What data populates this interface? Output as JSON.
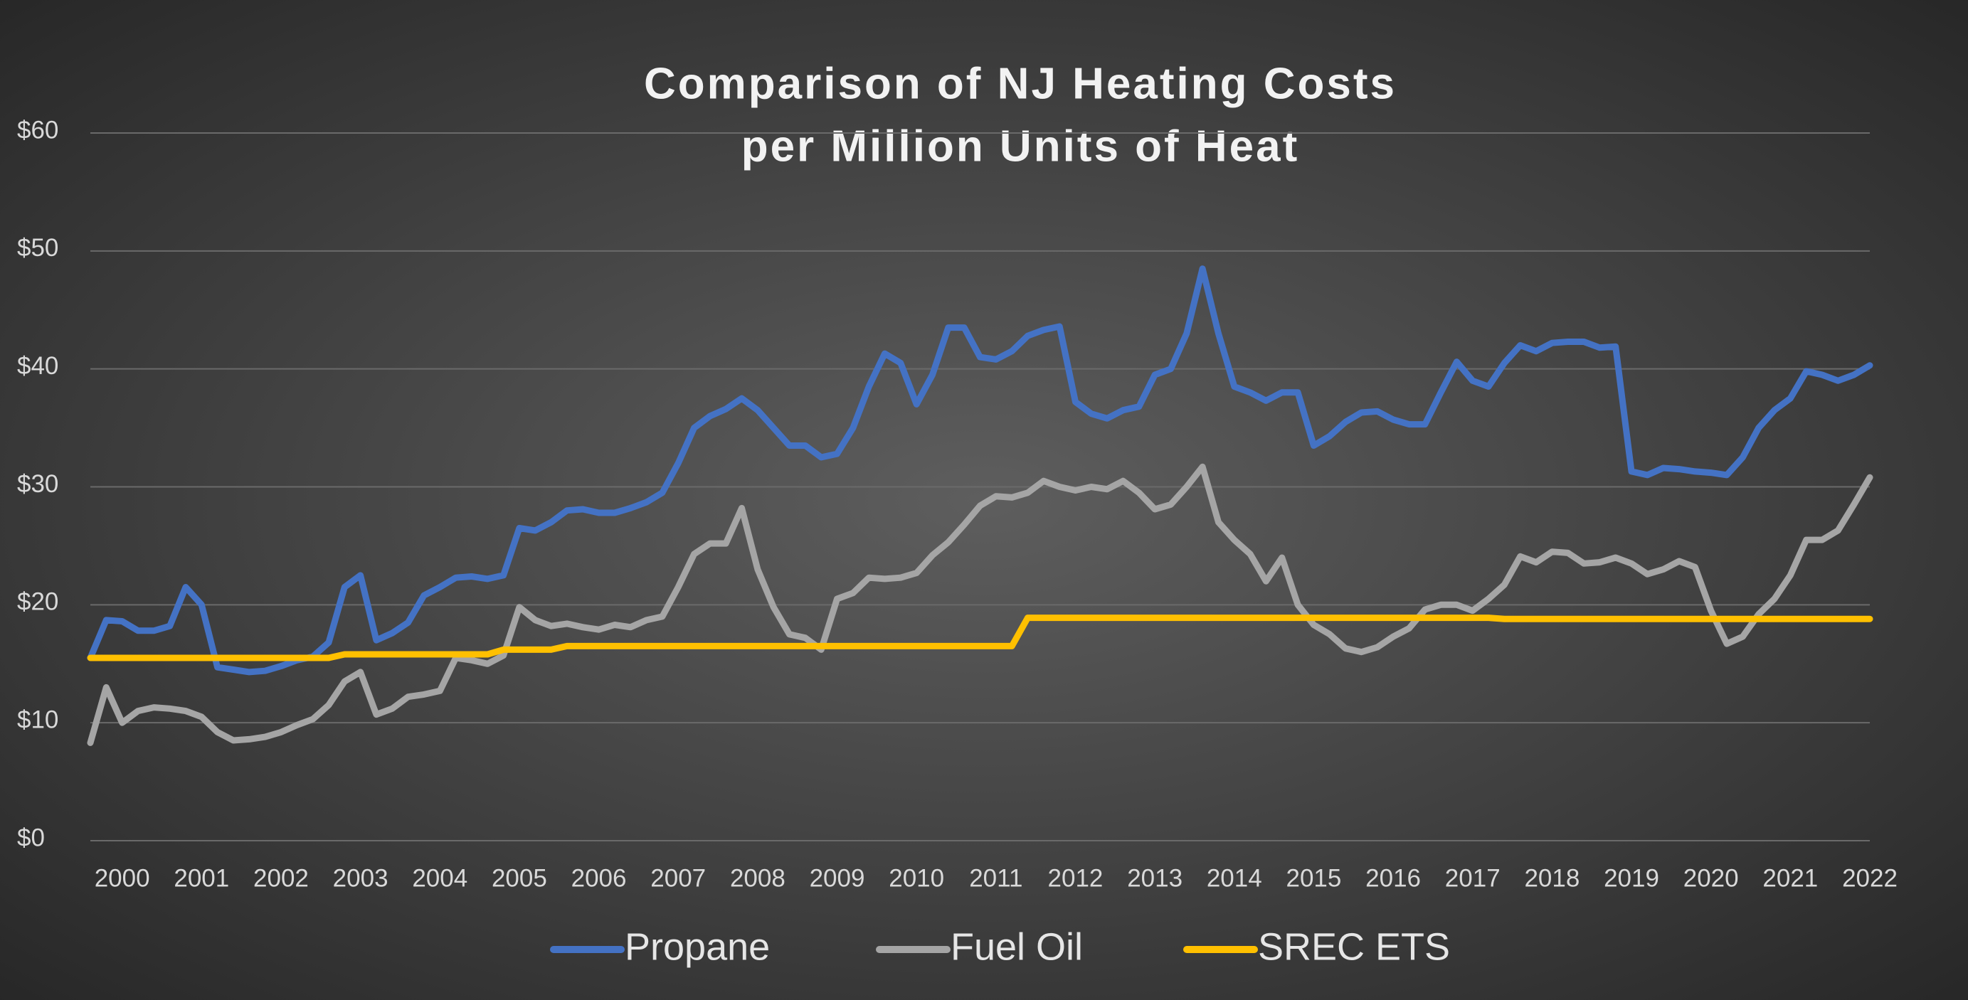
{
  "chart_data": {
    "type": "line",
    "title_lines": [
      "Comparison of NJ Heating Costs",
      "per Million Units of Heat"
    ],
    "x": [
      1999.6,
      1999.8,
      2000,
      2000.2,
      2000.4,
      2000.6,
      2000.8,
      2001,
      2001.2,
      2001.4,
      2001.6,
      2001.8,
      2002,
      2002.2,
      2002.4,
      2002.6,
      2002.8,
      2003,
      2003.2,
      2003.4,
      2003.6,
      2003.8,
      2004,
      2004.2,
      2004.4,
      2004.6,
      2004.8,
      2005,
      2005.2,
      2005.4,
      2005.6,
      2005.8,
      2006,
      2006.2,
      2006.4,
      2006.6,
      2006.8,
      2007,
      2007.2,
      2007.4,
      2007.6,
      2007.8,
      2008,
      2008.2,
      2008.4,
      2008.6,
      2008.8,
      2009,
      2009.2,
      2009.4,
      2009.6,
      2009.8,
      2010,
      2010.2,
      2010.4,
      2010.6,
      2010.8,
      2011,
      2011.2,
      2011.4,
      2011.6,
      2011.8,
      2012,
      2012.2,
      2012.4,
      2012.6,
      2012.8,
      2013,
      2013.2,
      2013.4,
      2013.6,
      2013.8,
      2014,
      2014.2,
      2014.4,
      2014.6,
      2014.8,
      2015,
      2015.2,
      2015.4,
      2015.6,
      2015.8,
      2016,
      2016.2,
      2016.4,
      2016.6,
      2016.8,
      2017,
      2017.2,
      2017.4,
      2017.6,
      2017.8,
      2018,
      2018.2,
      2018.4,
      2018.6,
      2018.8,
      2019,
      2019.2,
      2019.4,
      2019.6,
      2019.8,
      2020,
      2020.2,
      2020.4,
      2020.6,
      2020.8,
      2021,
      2021.2,
      2021.4,
      2021.6,
      2021.8,
      2022
    ],
    "series": [
      {
        "name": "Propane",
        "color": "#4472c4",
        "values": [
          15.5,
          18.7,
          18.6,
          17.8,
          17.8,
          18.2,
          21.5,
          20,
          14.7,
          14.5,
          14.3,
          14.4,
          14.8,
          15.3,
          15.6,
          16.8,
          21.5,
          22.5,
          17,
          17.6,
          18.5,
          20.8,
          21.5,
          22.3,
          22.4,
          22.2,
          22.5,
          26.5,
          26.3,
          27,
          28,
          28.1,
          27.8,
          27.8,
          28.2,
          28.7,
          29.5,
          32,
          35,
          36,
          36.6,
          37.5,
          36.5,
          35,
          33.5,
          33.5,
          32.5,
          32.8,
          35,
          38.5,
          41.3,
          40.5,
          37,
          39.5,
          43.5,
          43.5,
          41,
          40.8,
          41.5,
          42.8,
          43.3,
          43.6,
          37.2,
          36.2,
          35.8,
          36.5,
          36.8,
          39.5,
          40,
          43,
          48.5,
          43,
          38.5,
          38,
          37.3,
          38,
          38,
          33.5,
          34.3,
          35.5,
          36.3,
          36.4,
          35.7,
          35.3,
          35.3,
          38,
          40.6,
          39,
          38.5,
          40.5,
          42,
          41.5,
          42.2,
          42.3,
          42.3,
          41.8,
          41.9,
          31.3,
          31,
          31.6,
          31.5,
          31.3,
          31.2,
          31,
          32.5,
          35,
          36.5,
          37.5,
          39.8,
          39.5,
          39,
          39.5,
          40.3
        ]
      },
      {
        "name": "Fuel Oil",
        "color": "#a5a5a5",
        "values": [
          8.3,
          13,
          10,
          11,
          11.3,
          11.2,
          11,
          10.5,
          9.2,
          8.5,
          8.6,
          8.8,
          9.2,
          9.8,
          10.3,
          11.5,
          13.5,
          14.3,
          10.7,
          11.2,
          12.2,
          12.4,
          12.7,
          15.5,
          15.3,
          15,
          15.7,
          19.8,
          18.7,
          18.2,
          18.4,
          18.1,
          17.9,
          18.3,
          18.1,
          18.7,
          19,
          21.5,
          24.3,
          25.2,
          25.2,
          28.2,
          23,
          19.8,
          17.5,
          17.2,
          16.2,
          20.5,
          21,
          22.3,
          22.2,
          22.3,
          22.7,
          24.2,
          25.3,
          26.8,
          28.4,
          29.2,
          29.1,
          29.5,
          30.5,
          30,
          29.7,
          30,
          29.8,
          30.5,
          29.5,
          28.1,
          28.5,
          30,
          31.7,
          27,
          25.5,
          24.3,
          22,
          24,
          20,
          18.3,
          17.5,
          16.3,
          16,
          16.4,
          17.3,
          18,
          19.6,
          20,
          20,
          19.5,
          20.5,
          21.7,
          24.1,
          23.6,
          24.5,
          24.4,
          23.5,
          23.6,
          24,
          23.5,
          22.6,
          23,
          23.7,
          23.2,
          19.5,
          16.7,
          17.3,
          19.2,
          20.5,
          22.5,
          25.5,
          25.5,
          26.3,
          28.5,
          30.8
        ]
      },
      {
        "name": "SREC ETS",
        "color": "#ffc000",
        "values": [
          15.5,
          15.5,
          15.5,
          15.5,
          15.5,
          15.5,
          15.5,
          15.5,
          15.5,
          15.5,
          15.5,
          15.5,
          15.5,
          15.5,
          15.5,
          15.5,
          15.8,
          15.8,
          15.8,
          15.8,
          15.8,
          15.8,
          15.8,
          15.8,
          15.8,
          15.8,
          16.2,
          16.2,
          16.2,
          16.2,
          16.5,
          16.5,
          16.5,
          16.5,
          16.5,
          16.5,
          16.5,
          16.5,
          16.5,
          16.5,
          16.5,
          16.5,
          16.5,
          16.5,
          16.5,
          16.5,
          16.5,
          16.5,
          16.5,
          16.5,
          16.5,
          16.5,
          16.5,
          16.5,
          16.5,
          16.5,
          16.5,
          16.5,
          16.5,
          18.9,
          18.9,
          18.9,
          18.9,
          18.9,
          18.9,
          18.9,
          18.9,
          18.9,
          18.9,
          18.9,
          18.9,
          18.9,
          18.9,
          18.9,
          18.9,
          18.9,
          18.9,
          18.9,
          18.9,
          18.9,
          18.9,
          18.9,
          18.9,
          18.9,
          18.9,
          18.9,
          18.9,
          18.9,
          18.9,
          18.8,
          18.8,
          18.8,
          18.8,
          18.8,
          18.8,
          18.8,
          18.8,
          18.8,
          18.8,
          18.8,
          18.8,
          18.8,
          18.8,
          18.8,
          18.8,
          18.8,
          18.8,
          18.8,
          18.8,
          18.8,
          18.8,
          18.8,
          18.8
        ]
      }
    ],
    "xlim": [
      1999.6,
      2022
    ],
    "xticks": [
      2000,
      2001,
      2002,
      2003,
      2004,
      2005,
      2006,
      2007,
      2008,
      2009,
      2010,
      2011,
      2012,
      2013,
      2014,
      2015,
      2016,
      2017,
      2018,
      2019,
      2020,
      2021,
      2022
    ],
    "ylim": [
      0,
      60
    ],
    "yticks": [
      {
        "value": 0,
        "label": "$0"
      },
      {
        "value": 10,
        "label": "$10"
      },
      {
        "value": 20,
        "label": "$20"
      },
      {
        "value": 30,
        "label": "$30"
      },
      {
        "value": 40,
        "label": "$40"
      },
      {
        "value": 50,
        "label": "$50"
      },
      {
        "value": 60,
        "label": "$60"
      }
    ],
    "grid": true,
    "legend": "bottom"
  }
}
